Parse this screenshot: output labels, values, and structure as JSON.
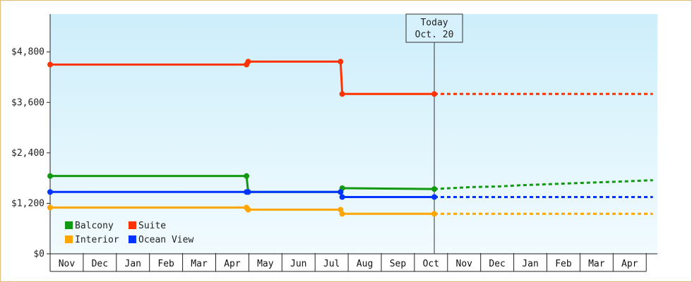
{
  "chart_data": {
    "type": "line",
    "title": "",
    "xlabel": "",
    "ylabel": "",
    "ylim": [
      0,
      5700
    ],
    "y_ticks": [
      {
        "value": 0,
        "label": "$0"
      },
      {
        "value": 1200,
        "label": "$1,200"
      },
      {
        "value": 2400,
        "label": "$2,400"
      },
      {
        "value": 3600,
        "label": "$3,600"
      },
      {
        "value": 4800,
        "label": "$4,800"
      }
    ],
    "months": [
      "Nov",
      "Dec",
      "Jan",
      "Feb",
      "Mar",
      "Apr",
      "May",
      "Jun",
      "Jul",
      "Aug",
      "Sep",
      "Oct",
      "Nov",
      "Dec",
      "Jan",
      "Feb",
      "Mar",
      "Apr"
    ],
    "grid": false,
    "legend_position": "bottom-left",
    "today": {
      "line1": "Today",
      "line2": "Oct. 20",
      "x": 11.6
    },
    "series": [
      {
        "name": "Balcony",
        "color": "#119911",
        "points": [
          [
            0,
            1850
          ],
          [
            5.93,
            1850
          ],
          [
            5.98,
            1470
          ],
          [
            8.77,
            1470
          ],
          [
            8.82,
            1560
          ],
          [
            11.6,
            1540
          ]
        ],
        "projection": [
          [
            11.6,
            1540
          ],
          [
            12.8,
            1590
          ],
          [
            13.5,
            1600
          ],
          [
            14.2,
            1630
          ],
          [
            15.2,
            1660
          ],
          [
            16.2,
            1690
          ],
          [
            17.3,
            1720
          ],
          [
            18.2,
            1750
          ]
        ]
      },
      {
        "name": "Suite",
        "color": "#ff3300",
        "points": [
          [
            0,
            4500
          ],
          [
            5.93,
            4500
          ],
          [
            5.98,
            4570
          ],
          [
            8.77,
            4570
          ],
          [
            8.82,
            3800
          ],
          [
            11.6,
            3800
          ]
        ],
        "projection": [
          [
            11.6,
            3800
          ],
          [
            18.2,
            3800
          ]
        ]
      },
      {
        "name": "Interior",
        "color": "#ffa500",
        "points": [
          [
            0,
            1100
          ],
          [
            5.93,
            1100
          ],
          [
            5.98,
            1050
          ],
          [
            8.77,
            1050
          ],
          [
            8.82,
            950
          ],
          [
            11.6,
            950
          ]
        ],
        "projection": [
          [
            11.6,
            950
          ],
          [
            18.2,
            950
          ]
        ]
      },
      {
        "name": "Ocean View",
        "color": "#0033ff",
        "points": [
          [
            0,
            1470
          ],
          [
            5.93,
            1470
          ],
          [
            5.98,
            1470
          ],
          [
            8.77,
            1470
          ],
          [
            8.82,
            1350
          ],
          [
            11.6,
            1350
          ]
        ],
        "projection": [
          [
            11.6,
            1350
          ],
          [
            18.2,
            1350
          ]
        ]
      }
    ]
  }
}
